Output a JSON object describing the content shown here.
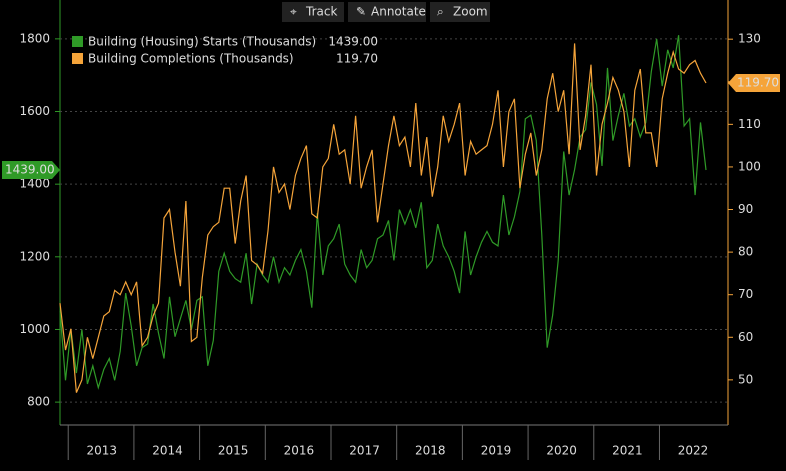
{
  "toolbar": [
    "Track",
    "Annotate",
    "Zoom"
  ],
  "chart_data": {
    "type": "line",
    "categories": [
      null,
      null,
      null,
      null,
      null,
      null,
      null,
      null,
      "2013",
      null,
      null,
      null,
      null,
      null,
      null,
      null,
      null,
      null,
      null,
      null,
      "2014",
      null,
      null,
      null,
      null,
      null,
      null,
      null,
      null,
      null,
      null,
      null,
      "2015",
      null,
      null,
      null,
      null,
      null,
      null,
      null,
      null,
      null,
      null,
      null,
      "2016",
      null,
      null,
      null,
      null,
      null,
      null,
      null,
      null,
      null,
      null,
      null,
      "2017",
      null,
      null,
      null,
      null,
      null,
      null,
      null,
      null,
      null,
      null,
      null,
      "2018",
      null,
      null,
      null,
      null,
      null,
      null,
      null,
      null,
      null,
      null,
      null,
      "2019",
      null,
      null,
      null,
      null,
      null,
      null,
      null,
      null,
      null,
      null,
      null,
      "2020",
      null,
      null,
      null,
      null,
      null,
      null,
      null,
      null,
      null,
      null,
      null,
      "2021",
      null,
      null,
      null,
      null,
      null,
      null,
      null,
      null,
      null,
      null,
      null,
      "2022",
      null,
      null
    ],
    "series": [
      {
        "name": "Building (Housing) Starts (Thousands)",
        "color": "#2f9a27",
        "axis": "y",
        "last_value_label": "1439.00",
        "values": [
          1050,
          860,
          1000,
          880,
          1000,
          850,
          900,
          840,
          890,
          920,
          860,
          940,
          1100,
          1010,
          900,
          950,
          960,
          1070,
          990,
          920,
          1090,
          980,
          1030,
          1080,
          1000,
          1080,
          1090,
          900,
          970,
          1160,
          1210,
          1160,
          1140,
          1130,
          1210,
          1070,
          1180,
          1150,
          1130,
          1200,
          1130,
          1170,
          1150,
          1190,
          1220,
          1160,
          1060,
          1320,
          1150,
          1230,
          1250,
          1290,
          1180,
          1150,
          1130,
          1220,
          1170,
          1190,
          1250,
          1260,
          1300,
          1190,
          1330,
          1290,
          1330,
          1280,
          1350,
          1170,
          1190,
          1290,
          1230,
          1200,
          1160,
          1100,
          1270,
          1150,
          1200,
          1240,
          1270,
          1240,
          1230,
          1370,
          1260,
          1310,
          1380,
          1580,
          1590,
          1520,
          1260,
          950,
          1040,
          1190,
          1490,
          1370,
          1440,
          1530,
          1550,
          1680,
          1620,
          1450,
          1720,
          1520,
          1590,
          1650,
          1560,
          1580,
          1530,
          1570,
          1710,
          1800,
          1670,
          1770,
          1720,
          1810,
          1560,
          1580,
          1370,
          1570,
          1439
        ]
      },
      {
        "name": "Building Completions (Thousands)",
        "color": "#f5a43a",
        "axis": "y2",
        "last_value_label": "119.70",
        "values": [
          68,
          57,
          62,
          47,
          50,
          60,
          55,
          60,
          65,
          66,
          71,
          70,
          73,
          70,
          73,
          58,
          60,
          65,
          68,
          88,
          90,
          80,
          72,
          92,
          59,
          60,
          74,
          84,
          86,
          87,
          95,
          95,
          82,
          92,
          98,
          78,
          77,
          75,
          85,
          100,
          94,
          96,
          90,
          98,
          102,
          105,
          89,
          88,
          100,
          102,
          110,
          103,
          104,
          96,
          112,
          95,
          100,
          104,
          87,
          96,
          105,
          112,
          105,
          107,
          100,
          115,
          98,
          107,
          93,
          100,
          112,
          106,
          110,
          115,
          98,
          106,
          103,
          104,
          105,
          110,
          118,
          100,
          113,
          116,
          95,
          103,
          108,
          98,
          104,
          116,
          122,
          113,
          118,
          103,
          129,
          104,
          112,
          124,
          98,
          110,
          115,
          121,
          118,
          113,
          100,
          118,
          123,
          108,
          108,
          100,
          116,
          122,
          127,
          123,
          122,
          124,
          125,
          122,
          119.7
        ]
      }
    ],
    "ylim": [
      737,
      1907
    ],
    "yticks": [
      800,
      1000,
      1200,
      1400,
      1600,
      1800
    ],
    "y2lim": [
      39.4,
      139.2
    ],
    "y2ticks": [
      50,
      60,
      70,
      80,
      90,
      100,
      110,
      120,
      130
    ],
    "grid": true,
    "legend": "top-left"
  }
}
